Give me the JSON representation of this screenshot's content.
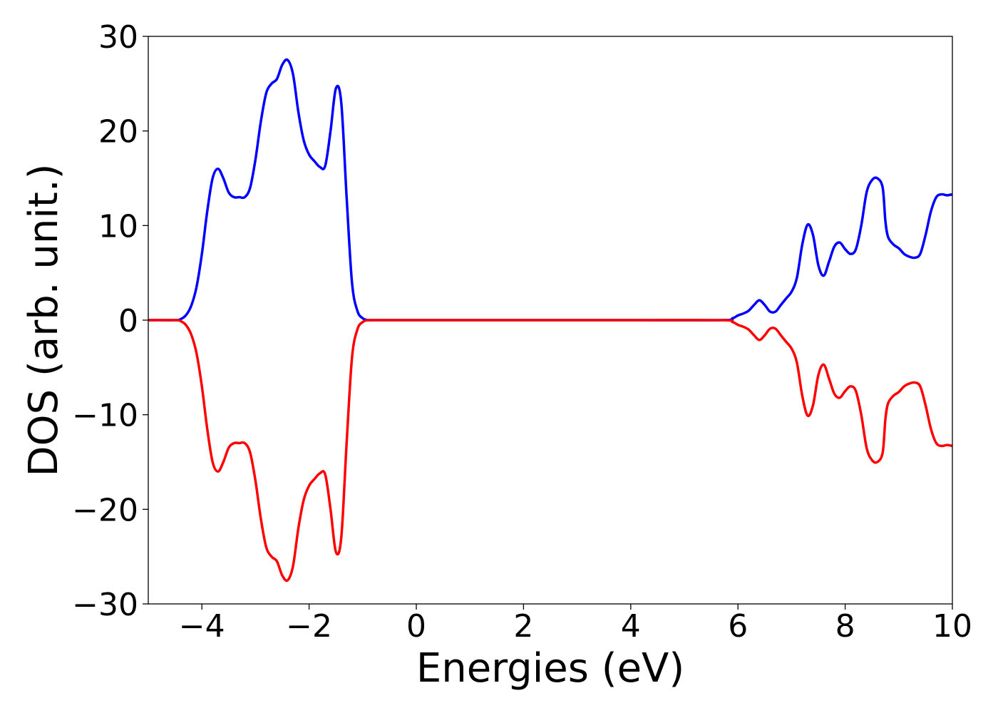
{
  "chart_data": {
    "type": "line",
    "title": "",
    "xlabel": "Energies (eV)",
    "ylabel": "DOS (arb. unit.)",
    "xlim": [
      -5,
      10
    ],
    "ylim": [
      -30,
      30
    ],
    "xticks": [
      -4,
      -2,
      0,
      2,
      4,
      6,
      8,
      10
    ],
    "xtick_labels": [
      "−4",
      "−2",
      "0",
      "2",
      "4",
      "6",
      "8",
      "10"
    ],
    "yticks": [
      -30,
      -20,
      -10,
      0,
      10,
      20,
      30
    ],
    "ytick_labels": [
      "−30",
      "−20",
      "−10",
      "0",
      "10",
      "20",
      "30"
    ],
    "grid": false,
    "legend": "none",
    "series": [
      {
        "color": "#0000ff",
        "x": [
          -5.0,
          -4.5,
          -4.4,
          -4.3,
          -4.2,
          -4.1,
          -4.0,
          -3.9,
          -3.8,
          -3.7,
          -3.6,
          -3.5,
          -3.4,
          -3.3,
          -3.2,
          -3.1,
          -3.0,
          -2.9,
          -2.8,
          -2.7,
          -2.6,
          -2.5,
          -2.4,
          -2.3,
          -2.2,
          -2.1,
          -2.0,
          -1.9,
          -1.8,
          -1.7,
          -1.6,
          -1.5,
          -1.4,
          -1.3,
          -1.2,
          -1.1,
          -1.0,
          -0.9,
          -0.8,
          -0.7,
          -0.6,
          -0.5,
          -0.4,
          0.0,
          2.0,
          4.0,
          5.7,
          5.9,
          6.0,
          6.1,
          6.2,
          6.3,
          6.4,
          6.5,
          6.6,
          6.7,
          6.8,
          6.9,
          7.0,
          7.1,
          7.2,
          7.3,
          7.4,
          7.5,
          7.6,
          7.7,
          7.8,
          7.9,
          8.0,
          8.1,
          8.2,
          8.3,
          8.4,
          8.5,
          8.6,
          8.7,
          8.75,
          8.8,
          8.9,
          9.0,
          9.1,
          9.2,
          9.3,
          9.4,
          9.5,
          9.6,
          9.7,
          9.8,
          9.9,
          10.0
        ],
        "y": [
          0.0,
          0.0,
          0.1,
          0.5,
          1.5,
          3.5,
          7.0,
          11.5,
          15.0,
          16.0,
          15.0,
          13.5,
          13.0,
          13.0,
          13.0,
          14.0,
          17.0,
          21.0,
          24.0,
          25.0,
          25.5,
          27.0,
          27.5,
          26.0,
          22.0,
          19.0,
          17.5,
          16.8,
          16.2,
          16.3,
          20.0,
          24.5,
          23.0,
          13.0,
          4.0,
          1.0,
          0.2,
          0.0,
          0.0,
          0.0,
          0.0,
          0.0,
          0.0,
          0.0,
          0.0,
          0.0,
          0.0,
          0.2,
          0.5,
          0.7,
          1.0,
          1.6,
          2.1,
          1.6,
          0.9,
          0.9,
          1.6,
          2.3,
          3.0,
          4.5,
          8.0,
          10.1,
          9.0,
          5.8,
          4.7,
          6.2,
          7.8,
          8.2,
          7.5,
          7.0,
          7.5,
          10.0,
          13.5,
          14.8,
          15.0,
          14.0,
          10.5,
          8.8,
          8.0,
          7.6,
          7.0,
          6.7,
          6.6,
          7.0,
          9.0,
          11.5,
          13.0,
          13.3,
          13.2,
          13.3
        ]
      },
      {
        "color": "#ff0000",
        "x": [
          -5.0,
          -4.5,
          -4.4,
          -4.3,
          -4.2,
          -4.1,
          -4.0,
          -3.9,
          -3.8,
          -3.7,
          -3.6,
          -3.5,
          -3.4,
          -3.3,
          -3.2,
          -3.1,
          -3.0,
          -2.9,
          -2.8,
          -2.7,
          -2.6,
          -2.5,
          -2.4,
          -2.3,
          -2.2,
          -2.1,
          -2.0,
          -1.9,
          -1.8,
          -1.7,
          -1.6,
          -1.5,
          -1.4,
          -1.3,
          -1.2,
          -1.1,
          -1.0,
          -0.9,
          -0.8,
          -0.7,
          -0.6,
          -0.5,
          -0.4,
          0.0,
          2.0,
          4.0,
          5.7,
          5.9,
          6.0,
          6.1,
          6.2,
          6.3,
          6.4,
          6.5,
          6.6,
          6.7,
          6.8,
          6.9,
          7.0,
          7.1,
          7.2,
          7.3,
          7.4,
          7.5,
          7.6,
          7.7,
          7.8,
          7.9,
          8.0,
          8.1,
          8.2,
          8.3,
          8.4,
          8.5,
          8.6,
          8.7,
          8.75,
          8.8,
          8.9,
          9.0,
          9.1,
          9.2,
          9.3,
          9.4,
          9.5,
          9.6,
          9.7,
          9.8,
          9.9,
          10.0
        ],
        "y": [
          0.0,
          0.0,
          -0.1,
          -0.5,
          -1.5,
          -3.5,
          -7.0,
          -11.5,
          -15.0,
          -16.0,
          -15.0,
          -13.5,
          -13.0,
          -13.0,
          -13.0,
          -14.0,
          -17.0,
          -21.0,
          -24.0,
          -25.0,
          -25.5,
          -27.0,
          -27.5,
          -26.0,
          -22.0,
          -19.0,
          -17.5,
          -16.8,
          -16.2,
          -16.3,
          -20.0,
          -24.5,
          -23.0,
          -13.0,
          -4.0,
          -1.0,
          -0.2,
          0.0,
          0.0,
          0.0,
          0.0,
          0.0,
          0.0,
          0.0,
          0.0,
          0.0,
          0.0,
          -0.2,
          -0.5,
          -0.7,
          -1.0,
          -1.6,
          -2.1,
          -1.6,
          -0.9,
          -0.9,
          -1.6,
          -2.3,
          -3.0,
          -4.5,
          -8.0,
          -10.1,
          -9.0,
          -5.8,
          -4.7,
          -6.2,
          -7.8,
          -8.2,
          -7.5,
          -7.0,
          -7.5,
          -10.0,
          -13.5,
          -14.8,
          -15.0,
          -14.0,
          -10.5,
          -8.8,
          -8.0,
          -7.6,
          -7.0,
          -6.7,
          -6.6,
          -7.0,
          -9.0,
          -11.5,
          -13.0,
          -13.3,
          -13.2,
          -13.3
        ]
      }
    ]
  }
}
